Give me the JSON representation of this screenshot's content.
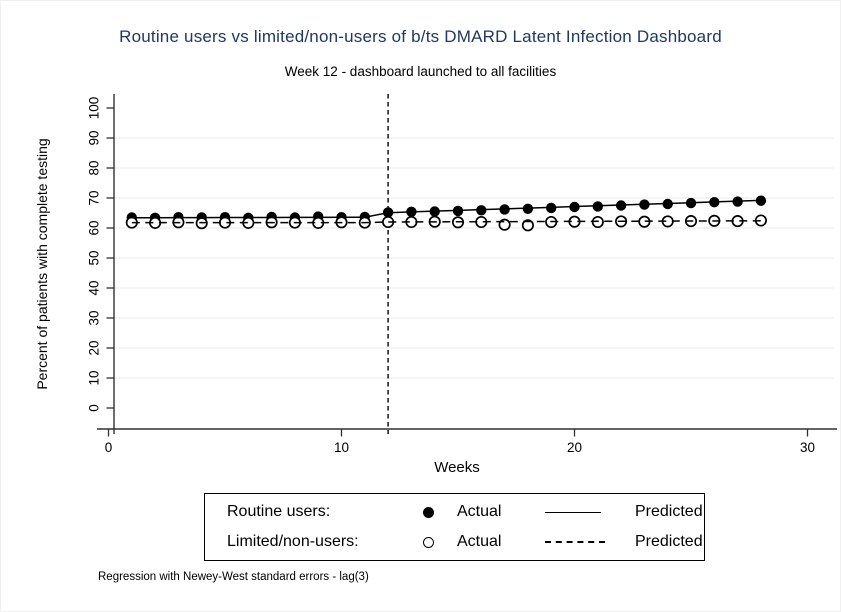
{
  "header": {
    "title": "Routine users vs limited/non-users of b/ts DMARD Latent Infection Dashboard",
    "subtitle": "Week 12 - dashboard launched to all facilities"
  },
  "note": {
    "text": "Regression with Newey-West standard errors - lag(3)"
  },
  "colors": {
    "title": "#1f3864",
    "axis": "#303030",
    "grid": "#e8e8e8",
    "series": "#000000",
    "background": "#ffffff"
  },
  "legend": {
    "rows": [
      {
        "label": "Routine users:",
        "marker": "filled-circle",
        "actual_label": "Actual",
        "line": "solid",
        "predicted_label": "Predicted"
      },
      {
        "label": "Limited/non-users:",
        "marker": "open-circle",
        "actual_label": "Actual",
        "line": "dashed",
        "predicted_label": "Predicted"
      }
    ]
  },
  "chart_data": {
    "type": "line",
    "title": "Routine users vs limited/non-users of b/ts DMARD Latent Infection Dashboard",
    "subtitle": "Week 12 - dashboard launched to all facilities",
    "xlabel": "Weeks",
    "ylabel": "Percent of patients with complete testing",
    "xlim": [
      0,
      30
    ],
    "ylim": [
      0,
      100
    ],
    "xticks": [
      0,
      10,
      20,
      30
    ],
    "yticks": [
      0,
      10,
      20,
      30,
      40,
      50,
      60,
      70,
      80,
      90,
      100
    ],
    "grid": "horizontal",
    "legend_position": "bottom",
    "intervention_week": 12,
    "x": [
      1,
      2,
      3,
      4,
      5,
      6,
      7,
      8,
      9,
      10,
      11,
      12,
      13,
      14,
      15,
      16,
      17,
      18,
      19,
      20,
      21,
      22,
      23,
      24,
      25,
      26,
      27,
      28
    ],
    "series": [
      {
        "name": "Routine users - Actual",
        "style": "filled-marker",
        "values": [
          63.5,
          63.4,
          63.6,
          63.5,
          63.6,
          63.4,
          63.7,
          63.5,
          63.8,
          63.6,
          63.7,
          65.2,
          65.4,
          65.5,
          65.7,
          65.9,
          66.2,
          66.4,
          66.7,
          67.0,
          67.2,
          67.5,
          67.8,
          68.0,
          68.3,
          68.6,
          68.8,
          69.1
        ]
      },
      {
        "name": "Routine users - Predicted",
        "style": "solid-line",
        "values": [
          63.4,
          63.42,
          63.44,
          63.46,
          63.48,
          63.5,
          63.52,
          63.54,
          63.56,
          63.58,
          63.6,
          65.1,
          65.36,
          65.61,
          65.87,
          66.13,
          66.38,
          66.64,
          66.89,
          67.15,
          67.41,
          67.66,
          67.92,
          68.18,
          68.43,
          68.69,
          68.94,
          69.2
        ]
      },
      {
        "name": "Limited/non-users - Actual",
        "style": "open-marker",
        "values": [
          61.8,
          61.7,
          61.9,
          61.6,
          61.8,
          61.7,
          61.9,
          61.8,
          61.7,
          61.9,
          61.8,
          62.0,
          62.0,
          62.1,
          61.9,
          62.0,
          61.1,
          60.9,
          62.0,
          62.1,
          62.0,
          62.2,
          62.1,
          62.2,
          62.3,
          62.4,
          62.3,
          62.5
        ]
      },
      {
        "name": "Limited/non-users - Predicted",
        "style": "dashed-line",
        "values": [
          61.8,
          61.8,
          61.8,
          61.8,
          61.8,
          61.8,
          61.8,
          61.8,
          61.8,
          61.8,
          61.8,
          62.0,
          62.03,
          62.05,
          62.08,
          62.1,
          62.13,
          62.15,
          62.18,
          62.2,
          62.23,
          62.25,
          62.28,
          62.3,
          62.33,
          62.35,
          62.38,
          62.4
        ]
      }
    ]
  }
}
